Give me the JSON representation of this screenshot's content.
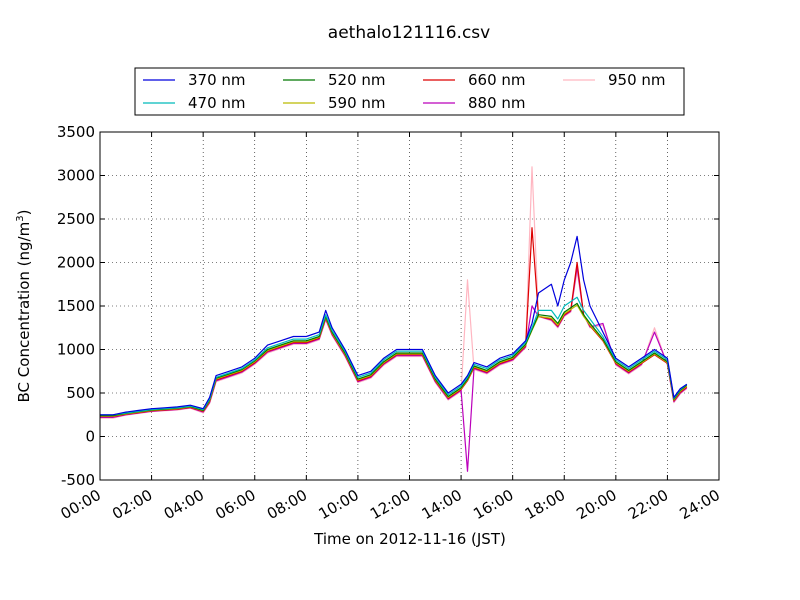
{
  "chart_data": {
    "type": "line",
    "title": "aethalo121116.csv",
    "xlabel": "Time on 2012-11-16 (JST)",
    "ylabel_main": "BC Concentration (ng/m",
    "ylabel_sup": "3",
    "ylabel_end": ")",
    "xlim": [
      0,
      24
    ],
    "ylim": [
      -500,
      3500
    ],
    "x_tick_values": [
      0,
      2,
      4,
      6,
      8,
      10,
      12,
      14,
      16,
      18,
      20,
      22,
      24
    ],
    "x_tick_labels": [
      "00:00",
      "02:00",
      "04:00",
      "06:00",
      "08:00",
      "10:00",
      "12:00",
      "14:00",
      "16:00",
      "18:00",
      "20:00",
      "22:00",
      "24:00"
    ],
    "y_ticks": [
      -500,
      0,
      500,
      1000,
      1500,
      2000,
      2500,
      3000,
      3500
    ],
    "grid": true,
    "legend_position": "top",
    "legend_columns": 4,
    "x": [
      0.0,
      0.5,
      1.0,
      1.5,
      2.0,
      2.5,
      3.0,
      3.5,
      4.0,
      4.25,
      4.5,
      5.0,
      5.5,
      6.0,
      6.5,
      7.0,
      7.5,
      8.0,
      8.5,
      8.75,
      9.0,
      9.5,
      10.0,
      10.5,
      11.0,
      11.5,
      12.0,
      12.5,
      13.0,
      13.5,
      14.0,
      14.25,
      14.5,
      15.0,
      15.5,
      16.0,
      16.5,
      16.75,
      17.0,
      17.5,
      17.75,
      18.0,
      18.25,
      18.5,
      18.75,
      19.0,
      19.5,
      20.0,
      20.5,
      21.0,
      21.5,
      22.0,
      22.25,
      22.5,
      22.75
    ],
    "series": [
      {
        "name": "370 nm",
        "color": "#0000dd",
        "values": [
          250,
          250,
          280,
          300,
          320,
          330,
          340,
          360,
          320,
          450,
          700,
          750,
          800,
          900,
          1050,
          1100,
          1150,
          1150,
          1200,
          1450,
          1250,
          1000,
          700,
          750,
          900,
          1000,
          1000,
          1000,
          700,
          500,
          600,
          700,
          850,
          800,
          900,
          950,
          1100,
          1300,
          1650,
          1750,
          1500,
          1800,
          2000,
          2300,
          1800,
          1500,
          1200,
          900,
          800,
          900,
          1000,
          900,
          450,
          550,
          600
        ]
      },
      {
        "name": "470 nm",
        "color": "#00bbbb",
        "values": [
          250,
          250,
          270,
          290,
          310,
          320,
          330,
          350,
          310,
          430,
          680,
          730,
          780,
          880,
          1020,
          1070,
          1120,
          1120,
          1170,
          1400,
          1220,
          980,
          680,
          730,
          880,
          980,
          980,
          980,
          680,
          480,
          580,
          680,
          830,
          780,
          880,
          930,
          1080,
          1250,
          1450,
          1450,
          1350,
          1500,
          1550,
          1600,
          1450,
          1350,
          1150,
          880,
          780,
          880,
          980,
          880,
          440,
          540,
          600
        ]
      },
      {
        "name": "520 nm",
        "color": "#007700",
        "values": [
          240,
          240,
          265,
          285,
          305,
          315,
          325,
          345,
          300,
          420,
          670,
          720,
          770,
          870,
          1000,
          1050,
          1100,
          1100,
          1150,
          1380,
          1200,
          960,
          660,
          710,
          860,
          960,
          960,
          960,
          660,
          460,
          560,
          660,
          810,
          760,
          860,
          910,
          1060,
          1230,
          1400,
          1380,
          1300,
          1430,
          1480,
          1530,
          1400,
          1300,
          1120,
          860,
          760,
          860,
          960,
          860,
          430,
          530,
          590
        ]
      },
      {
        "name": "590 nm",
        "color": "#bbbb00",
        "values": [
          235,
          235,
          260,
          280,
          300,
          310,
          320,
          340,
          295,
          410,
          660,
          710,
          760,
          860,
          990,
          1040,
          1090,
          1090,
          1140,
          1370,
          1190,
          950,
          650,
          700,
          850,
          950,
          950,
          950,
          650,
          450,
          550,
          650,
          800,
          750,
          850,
          900,
          1050,
          1220,
          1380,
          1360,
          1280,
          1410,
          1460,
          1510,
          1380,
          1280,
          1110,
          850,
          750,
          850,
          950,
          850,
          420,
          520,
          580
        ]
      },
      {
        "name": "660 nm",
        "color": "#dd0000",
        "values": [
          230,
          230,
          255,
          275,
          295,
          305,
          315,
          335,
          290,
          400,
          650,
          700,
          750,
          850,
          980,
          1030,
          1080,
          1080,
          1130,
          1360,
          1180,
          940,
          640,
          690,
          840,
          940,
          940,
          940,
          640,
          440,
          540,
          640,
          790,
          740,
          840,
          890,
          1040,
          2400,
          1380,
          1350,
          1270,
          1400,
          1450,
          2000,
          1400,
          1270,
          1100,
          840,
          740,
          840,
          940,
          840,
          410,
          510,
          570
        ]
      },
      {
        "name": "880 nm",
        "color": "#bb00bb",
        "values": [
          220,
          220,
          250,
          270,
          290,
          300,
          310,
          330,
          280,
          390,
          640,
          690,
          740,
          840,
          970,
          1020,
          1070,
          1070,
          1120,
          1350,
          1170,
          930,
          630,
          680,
          830,
          930,
          930,
          930,
          630,
          430,
          530,
          -400,
          780,
          730,
          830,
          880,
          1030,
          1500,
          1380,
          1340,
          1260,
          1390,
          1440,
          1950,
          1400,
          1260,
          1300,
          830,
          730,
          830,
          1200,
          830,
          400,
          500,
          560
        ]
      },
      {
        "name": "950 nm",
        "color": "#ffb6c1",
        "values": [
          210,
          210,
          245,
          265,
          285,
          295,
          305,
          325,
          270,
          380,
          630,
          680,
          730,
          830,
          960,
          1010,
          1060,
          1060,
          1110,
          1340,
          1160,
          920,
          620,
          670,
          820,
          920,
          920,
          920,
          620,
          420,
          520,
          1800,
          770,
          720,
          820,
          870,
          1020,
          3100,
          1380,
          1330,
          1250,
          1380,
          1430,
          1900,
          1400,
          1250,
          1280,
          820,
          720,
          820,
          1250,
          820,
          390,
          490,
          550
        ]
      }
    ]
  }
}
